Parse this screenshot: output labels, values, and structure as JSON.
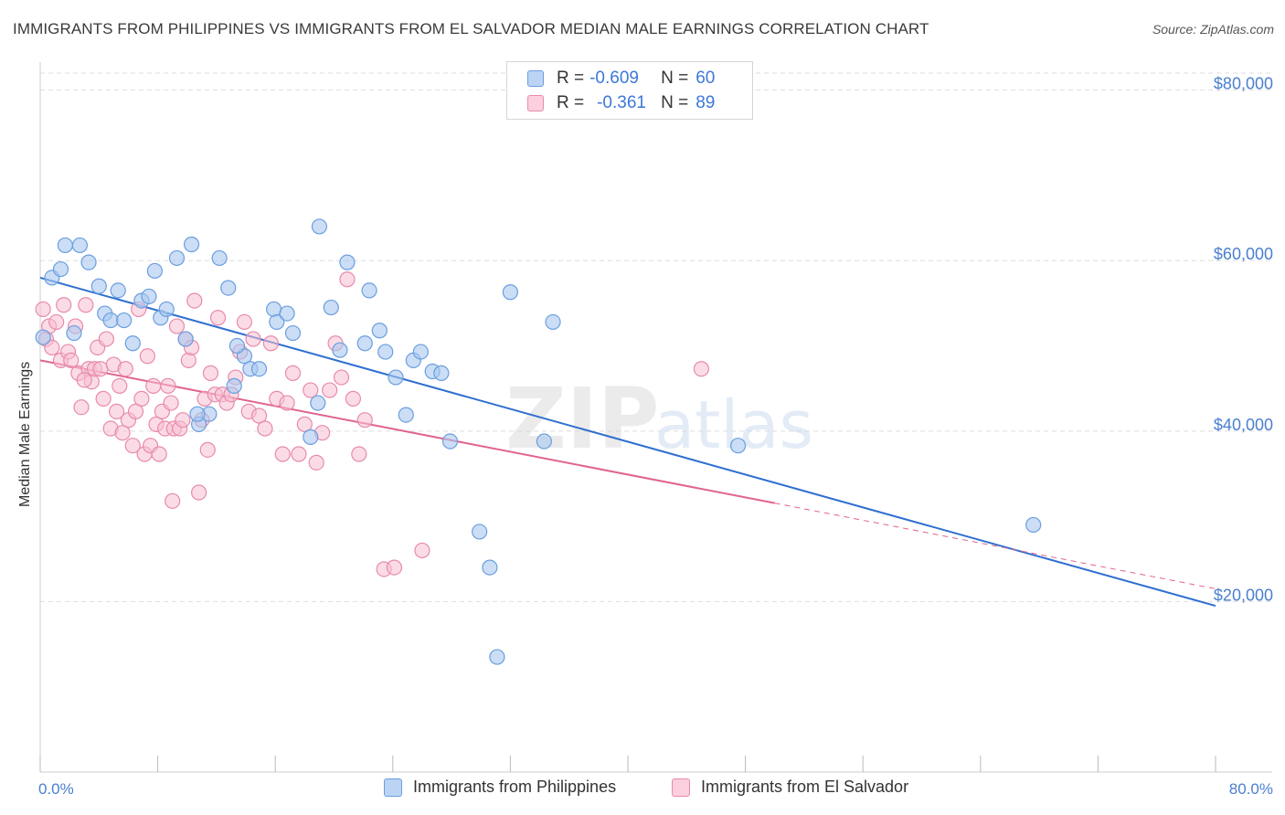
{
  "title": "IMMIGRANTS FROM PHILIPPINES VS IMMIGRANTS FROM EL SALVADOR MEDIAN MALE EARNINGS CORRELATION CHART",
  "source": "Source: ZipAtlas.com",
  "watermark": {
    "zip": "ZIP",
    "atlas": "atlas"
  },
  "legend": {
    "rows": [
      {
        "r_label": "R =",
        "r_value": "-0.609",
        "n_label": "N =",
        "n_value": "60",
        "color": "#8fb8ee"
      },
      {
        "r_label": "R =",
        "r_value": "-0.361",
        "n_label": "N =",
        "n_value": "89",
        "color": "#f4a8c4"
      }
    ]
  },
  "bottom_legend": {
    "philippines": "Immigrants from Philippines",
    "el_salvador": "Immigrants from El Salvador"
  },
  "colors": {
    "blue_fill": "#a9c8f0",
    "blue_stroke": "#6a9edf",
    "blue_line": "#2f6fcf",
    "pink_fill": "#f7bfd2",
    "pink_stroke": "#e88aab",
    "pink_line": "#e0648f"
  },
  "chart_data": {
    "type": "scatter",
    "title": "IMMIGRANTS FROM PHILIPPINES VS IMMIGRANTS FROM EL SALVADOR MEDIAN MALE EARNINGS CORRELATION CHART",
    "xlabel": "",
    "ylabel": "Median Male Earnings",
    "xlim": [
      0,
      80
    ],
    "ylim": [
      0,
      82000
    ],
    "x_tick_labels": [
      "0.0%",
      "80.0%"
    ],
    "y_ticks": [
      20000,
      40000,
      60000,
      80000
    ],
    "y_tick_labels": [
      "$20,000",
      "$40,000",
      "$60,000",
      "$80,000"
    ],
    "grid": true,
    "series": [
      {
        "name": "Immigrants from Philippines",
        "color": "#6a9edf",
        "trend": {
          "x0": 0,
          "y0": 58000,
          "x1": 80,
          "y1": 19500,
          "dash_from": null
        },
        "points": [
          [
            0.2,
            51000
          ],
          [
            0.8,
            58000
          ],
          [
            1.4,
            59000
          ],
          [
            1.7,
            61800
          ],
          [
            2.7,
            61800
          ],
          [
            3.3,
            59800
          ],
          [
            2.3,
            51500
          ],
          [
            4.0,
            57000
          ],
          [
            4.4,
            53800
          ],
          [
            4.8,
            53000
          ],
          [
            5.3,
            56500
          ],
          [
            5.7,
            53000
          ],
          [
            6.3,
            50300
          ],
          [
            6.9,
            55300
          ],
          [
            7.4,
            55800
          ],
          [
            7.8,
            58800
          ],
          [
            8.2,
            53300
          ],
          [
            8.6,
            54300
          ],
          [
            9.3,
            60300
          ],
          [
            9.9,
            50800
          ],
          [
            10.3,
            61900
          ],
          [
            10.8,
            40800
          ],
          [
            11.5,
            42000
          ],
          [
            12.2,
            60300
          ],
          [
            12.8,
            56800
          ],
          [
            13.2,
            45300
          ],
          [
            13.9,
            48800
          ],
          [
            14.3,
            47300
          ],
          [
            14.9,
            47300
          ],
          [
            15.9,
            54300
          ],
          [
            16.1,
            52800
          ],
          [
            16.8,
            53800
          ],
          [
            17.2,
            51500
          ],
          [
            18.4,
            39300
          ],
          [
            18.9,
            43300
          ],
          [
            19.0,
            64000
          ],
          [
            19.8,
            54500
          ],
          [
            20.4,
            49500
          ],
          [
            20.9,
            59800
          ],
          [
            22.1,
            50300
          ],
          [
            22.4,
            56500
          ],
          [
            23.1,
            51800
          ],
          [
            23.5,
            49300
          ],
          [
            24.2,
            46300
          ],
          [
            24.9,
            41900
          ],
          [
            25.4,
            48300
          ],
          [
            25.9,
            49300
          ],
          [
            26.7,
            47000
          ],
          [
            27.3,
            46800
          ],
          [
            27.9,
            38800
          ],
          [
            29.9,
            28200
          ],
          [
            31.1,
            13500
          ],
          [
            32.0,
            56300
          ],
          [
            34.3,
            38800
          ],
          [
            34.9,
            52800
          ],
          [
            47.5,
            38300
          ],
          [
            67.6,
            29000
          ],
          [
            30.6,
            24000
          ],
          [
            10.7,
            42000
          ],
          [
            13.4,
            50000
          ]
        ]
      },
      {
        "name": "Immigrants from El Salvador",
        "color": "#e88aab",
        "trend": {
          "x0": 0,
          "y0": 48300,
          "x1": 80,
          "y1": 21500,
          "dash_from": 50
        },
        "points": [
          [
            0.2,
            54300
          ],
          [
            0.4,
            50800
          ],
          [
            0.6,
            52300
          ],
          [
            0.8,
            49800
          ],
          [
            1.1,
            52800
          ],
          [
            1.4,
            48300
          ],
          [
            1.6,
            54800
          ],
          [
            1.9,
            49300
          ],
          [
            2.1,
            48300
          ],
          [
            2.4,
            52300
          ],
          [
            2.6,
            46800
          ],
          [
            2.8,
            42800
          ],
          [
            3.1,
            54800
          ],
          [
            3.3,
            47300
          ],
          [
            3.5,
            45800
          ],
          [
            3.7,
            47300
          ],
          [
            3.9,
            49800
          ],
          [
            4.1,
            47300
          ],
          [
            4.3,
            43800
          ],
          [
            4.5,
            50800
          ],
          [
            4.8,
            40300
          ],
          [
            5.0,
            47800
          ],
          [
            5.2,
            42300
          ],
          [
            5.4,
            45300
          ],
          [
            5.6,
            39800
          ],
          [
            5.8,
            47300
          ],
          [
            6.0,
            41300
          ],
          [
            6.3,
            38300
          ],
          [
            6.5,
            42300
          ],
          [
            6.7,
            54300
          ],
          [
            6.9,
            43800
          ],
          [
            7.1,
            37300
          ],
          [
            7.3,
            48800
          ],
          [
            7.5,
            38300
          ],
          [
            7.7,
            45300
          ],
          [
            7.9,
            40800
          ],
          [
            8.1,
            37300
          ],
          [
            8.3,
            42300
          ],
          [
            8.5,
            40300
          ],
          [
            8.7,
            45300
          ],
          [
            8.9,
            43300
          ],
          [
            9.1,
            40300
          ],
          [
            9.3,
            52300
          ],
          [
            9.5,
            40300
          ],
          [
            9.7,
            41300
          ],
          [
            9.9,
            50800
          ],
          [
            10.1,
            48300
          ],
          [
            10.3,
            49800
          ],
          [
            10.5,
            55300
          ],
          [
            10.8,
            32800
          ],
          [
            11.0,
            41300
          ],
          [
            11.2,
            43800
          ],
          [
            11.4,
            37800
          ],
          [
            11.6,
            46800
          ],
          [
            11.9,
            44300
          ],
          [
            12.1,
            53300
          ],
          [
            12.4,
            44300
          ],
          [
            12.7,
            43300
          ],
          [
            13.0,
            44300
          ],
          [
            13.3,
            46300
          ],
          [
            13.6,
            49300
          ],
          [
            13.9,
            52800
          ],
          [
            14.2,
            42300
          ],
          [
            14.5,
            50800
          ],
          [
            14.9,
            41800
          ],
          [
            15.3,
            40300
          ],
          [
            15.7,
            50300
          ],
          [
            16.1,
            43800
          ],
          [
            16.5,
            37300
          ],
          [
            16.8,
            43300
          ],
          [
            17.2,
            46800
          ],
          [
            17.6,
            37300
          ],
          [
            18.0,
            40800
          ],
          [
            18.4,
            44800
          ],
          [
            18.8,
            36300
          ],
          [
            19.2,
            39800
          ],
          [
            19.7,
            44800
          ],
          [
            20.1,
            50300
          ],
          [
            20.5,
            46300
          ],
          [
            20.9,
            57800
          ],
          [
            21.3,
            43800
          ],
          [
            21.7,
            37300
          ],
          [
            22.1,
            41300
          ],
          [
            23.4,
            23800
          ],
          [
            24.1,
            24000
          ],
          [
            26.0,
            26000
          ],
          [
            45.0,
            47300
          ],
          [
            9.0,
            31800
          ],
          [
            3.0,
            46000
          ]
        ]
      }
    ]
  }
}
